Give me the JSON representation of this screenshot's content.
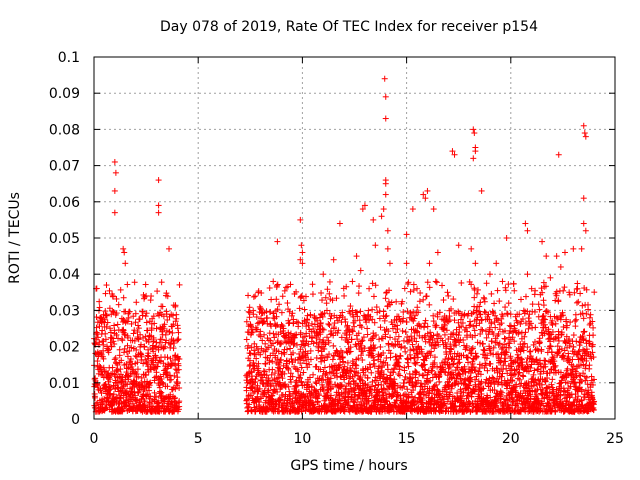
{
  "chart_data": {
    "type": "scatter",
    "title": "Day 078 of 2019, Rate Of TEC Index for receiver p154",
    "xlabel": "GPS time / hours",
    "ylabel": "ROTI / TECUs",
    "xlim": [
      0,
      25
    ],
    "ylim": [
      0,
      0.1
    ],
    "grid": true,
    "marker": "+",
    "color": "#ff0000",
    "x_ticks": [
      "0",
      "5",
      "10",
      "15",
      "20",
      "25"
    ],
    "x_tick_values": [
      0,
      5,
      10,
      15,
      20,
      25
    ],
    "y_ticks": [
      "0",
      "0.01",
      "0.02",
      "0.03",
      "0.04",
      "0.05",
      "0.06",
      "0.07",
      "0.08",
      "0.09",
      "0.1"
    ],
    "y_tick_values": [
      0,
      0.01,
      0.02,
      0.03,
      0.04,
      0.05,
      0.06,
      0.07,
      0.08,
      0.09,
      0.1
    ],
    "series": [
      {
        "name": "ROTI",
        "segments": [
          [
            0.0,
            4.1
          ],
          [
            7.3,
            24.0
          ]
        ],
        "baseline_range": [
          0.002,
          0.03
        ],
        "points": [
          {
            "x": 0.1,
            "y": 0.036
          },
          {
            "x": 0.6,
            "y": 0.037
          },
          {
            "x": 0.9,
            "y": 0.034
          },
          {
            "x": 1.0,
            "y": 0.071
          },
          {
            "x": 1.05,
            "y": 0.068
          },
          {
            "x": 1.0,
            "y": 0.063
          },
          {
            "x": 1.0,
            "y": 0.057
          },
          {
            "x": 1.4,
            "y": 0.047
          },
          {
            "x": 1.45,
            "y": 0.046
          },
          {
            "x": 1.5,
            "y": 0.043
          },
          {
            "x": 3.1,
            "y": 0.066
          },
          {
            "x": 3.1,
            "y": 0.059
          },
          {
            "x": 3.1,
            "y": 0.057
          },
          {
            "x": 3.6,
            "y": 0.047
          },
          {
            "x": 2.5,
            "y": 0.034
          },
          {
            "x": 3.9,
            "y": 0.031
          },
          {
            "x": 8.6,
            "y": 0.038
          },
          {
            "x": 8.5,
            "y": 0.033
          },
          {
            "x": 8.8,
            "y": 0.049
          },
          {
            "x": 9.9,
            "y": 0.055
          },
          {
            "x": 9.95,
            "y": 0.048
          },
          {
            "x": 10.0,
            "y": 0.046
          },
          {
            "x": 9.9,
            "y": 0.044
          },
          {
            "x": 10.0,
            "y": 0.043
          },
          {
            "x": 11.0,
            "y": 0.04
          },
          {
            "x": 11.5,
            "y": 0.044
          },
          {
            "x": 11.8,
            "y": 0.054
          },
          {
            "x": 12.6,
            "y": 0.045
          },
          {
            "x": 12.8,
            "y": 0.041
          },
          {
            "x": 12.9,
            "y": 0.058
          },
          {
            "x": 13.0,
            "y": 0.059
          },
          {
            "x": 13.4,
            "y": 0.055
          },
          {
            "x": 13.5,
            "y": 0.048
          },
          {
            "x": 13.8,
            "y": 0.056
          },
          {
            "x": 13.9,
            "y": 0.058
          },
          {
            "x": 14.0,
            "y": 0.066
          },
          {
            "x": 14.0,
            "y": 0.065
          },
          {
            "x": 14.0,
            "y": 0.062
          },
          {
            "x": 13.95,
            "y": 0.094
          },
          {
            "x": 14.0,
            "y": 0.089
          },
          {
            "x": 14.0,
            "y": 0.083
          },
          {
            "x": 14.1,
            "y": 0.052
          },
          {
            "x": 14.1,
            "y": 0.047
          },
          {
            "x": 14.2,
            "y": 0.043
          },
          {
            "x": 15.0,
            "y": 0.051
          },
          {
            "x": 15.0,
            "y": 0.043
          },
          {
            "x": 15.3,
            "y": 0.058
          },
          {
            "x": 15.8,
            "y": 0.062
          },
          {
            "x": 15.9,
            "y": 0.061
          },
          {
            "x": 16.0,
            "y": 0.063
          },
          {
            "x": 16.3,
            "y": 0.058
          },
          {
            "x": 16.1,
            "y": 0.043
          },
          {
            "x": 16.5,
            "y": 0.046
          },
          {
            "x": 16.4,
            "y": 0.038
          },
          {
            "x": 17.2,
            "y": 0.074
          },
          {
            "x": 17.3,
            "y": 0.073
          },
          {
            "x": 17.5,
            "y": 0.048
          },
          {
            "x": 18.2,
            "y": 0.08
          },
          {
            "x": 18.25,
            "y": 0.079
          },
          {
            "x": 18.3,
            "y": 0.074
          },
          {
            "x": 18.2,
            "y": 0.072
          },
          {
            "x": 18.3,
            "y": 0.075
          },
          {
            "x": 18.1,
            "y": 0.047
          },
          {
            "x": 18.3,
            "y": 0.043
          },
          {
            "x": 18.6,
            "y": 0.063
          },
          {
            "x": 19.0,
            "y": 0.04
          },
          {
            "x": 19.3,
            "y": 0.043
          },
          {
            "x": 19.8,
            "y": 0.05
          },
          {
            "x": 19.6,
            "y": 0.038
          },
          {
            "x": 20.7,
            "y": 0.054
          },
          {
            "x": 20.8,
            "y": 0.052
          },
          {
            "x": 20.8,
            "y": 0.04
          },
          {
            "x": 21.0,
            "y": 0.036
          },
          {
            "x": 21.5,
            "y": 0.049
          },
          {
            "x": 21.7,
            "y": 0.045
          },
          {
            "x": 21.9,
            "y": 0.039
          },
          {
            "x": 22.2,
            "y": 0.045
          },
          {
            "x": 22.3,
            "y": 0.073
          },
          {
            "x": 22.4,
            "y": 0.042
          },
          {
            "x": 22.6,
            "y": 0.046
          },
          {
            "x": 23.0,
            "y": 0.047
          },
          {
            "x": 23.5,
            "y": 0.081
          },
          {
            "x": 23.55,
            "y": 0.079
          },
          {
            "x": 23.6,
            "y": 0.078
          },
          {
            "x": 23.5,
            "y": 0.061
          },
          {
            "x": 23.5,
            "y": 0.054
          },
          {
            "x": 23.6,
            "y": 0.052
          },
          {
            "x": 23.4,
            "y": 0.047
          },
          {
            "x": 23.2,
            "y": 0.036
          },
          {
            "x": 12.0,
            "y": 0.034
          },
          {
            "x": 12.4,
            "y": 0.038
          },
          {
            "x": 13.2,
            "y": 0.036
          },
          {
            "x": 15.5,
            "y": 0.036
          },
          {
            "x": 17.0,
            "y": 0.034
          },
          {
            "x": 19.9,
            "y": 0.032
          },
          {
            "x": 22.8,
            "y": 0.035
          }
        ]
      }
    ]
  }
}
